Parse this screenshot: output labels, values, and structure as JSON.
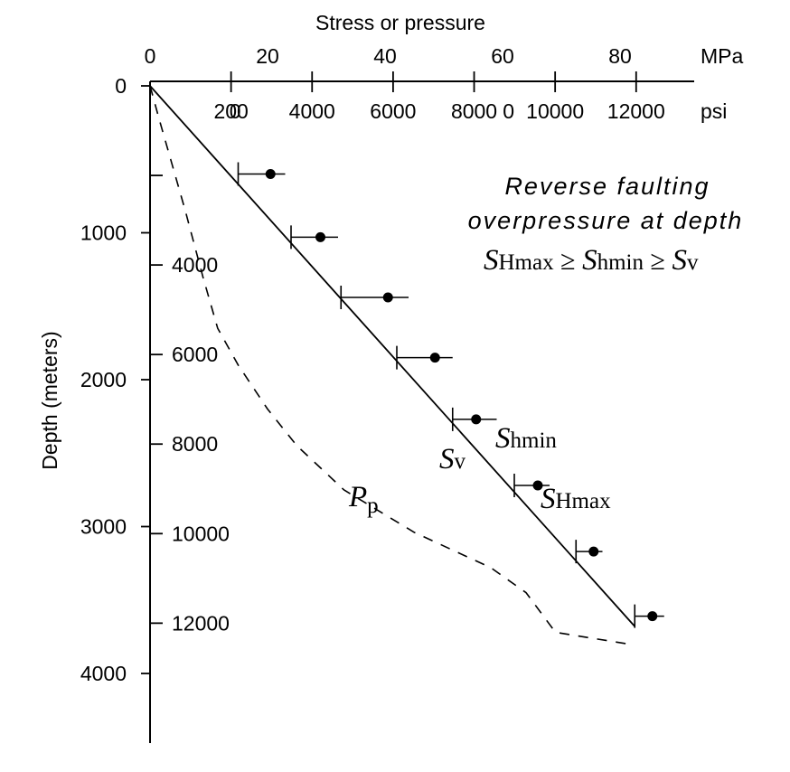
{
  "chart_data": {
    "type": "scatter",
    "title": "Stress or pressure",
    "xlabel": "Stress or pressure",
    "x_unit_top": "MPa",
    "x_unit_bottom": "psi",
    "ylabel": "Depth (meters)",
    "x_mpa_ticks": [
      "0",
      "20",
      "40",
      "60",
      "80"
    ],
    "x_psi_ticks": [
      {
        "label": "200",
        "psi": 2000
      },
      {
        "label": "0",
        "psi": 2100
      },
      {
        "label": "4000",
        "psi": 4000
      },
      {
        "label": "6000",
        "psi": 6000
      },
      {
        "label": "8000",
        "psi": 8000
      },
      {
        "label": "0",
        "psi": 8850
      },
      {
        "label": "10000",
        "psi": 10000
      },
      {
        "label": "12000",
        "psi": 12000
      }
    ],
    "x_psi_tick_marks": [
      2000,
      4000,
      6000,
      8000,
      10000,
      12000
    ],
    "y_m_ticks": [
      "0",
      "1000",
      "2000",
      "3000",
      "4000"
    ],
    "y_ft_ticks": [
      {
        "label": "4000",
        "ft": 4000
      },
      {
        "label": "6000",
        "ft": 6000
      },
      {
        "label": "8000",
        "ft": 8000
      },
      {
        "label": "10000",
        "ft": 10000
      },
      {
        "label": "12000",
        "ft": 12000
      }
    ],
    "y_ft_tick_marks": [
      2000,
      4000,
      6000,
      8000,
      10000,
      12000
    ],
    "xlim_mpa": [
      0,
      92
    ],
    "ylim_m": [
      0,
      4500
    ],
    "series": [
      {
        "name": "Sv",
        "kind": "line",
        "points": [
          [
            0,
            0
          ],
          [
            82.5,
            3680
          ]
        ]
      },
      {
        "name": "Pp",
        "kind": "dashed-line",
        "points": [
          [
            0,
            0
          ],
          [
            1.5,
            220
          ],
          [
            3.5,
            500
          ],
          [
            6,
            850
          ],
          [
            9,
            1300
          ],
          [
            11.5,
            1650
          ],
          [
            15,
            1900
          ],
          [
            20,
            2200
          ],
          [
            25,
            2450
          ],
          [
            29,
            2600
          ],
          [
            33,
            2750
          ],
          [
            45,
            3040
          ],
          [
            58,
            3280
          ],
          [
            64,
            3450
          ],
          [
            69,
            3720
          ],
          [
            81.5,
            3800
          ]
        ]
      },
      {
        "name": "Shmin",
        "kind": "tick",
        "x": [
          15,
          24,
          32.5,
          42,
          51.5,
          62,
          72.5,
          82.5
        ],
        "y": [
          600,
          1030,
          1440,
          1850,
          2270,
          2720,
          3170,
          3610
        ]
      },
      {
        "name": "SHmax",
        "kind": "point",
        "x": [
          20.5,
          29,
          40.5,
          48.5,
          55.5,
          66,
          75.5,
          85.5
        ],
        "y": [
          600,
          1030,
          1440,
          1850,
          2270,
          2720,
          3170,
          3610
        ],
        "bar_from": [
          15,
          24,
          32.5,
          42,
          51.5,
          62,
          72.5,
          82.5
        ],
        "bar_to": [
          23,
          32,
          44,
          51.5,
          59,
          68,
          77,
          87.5
        ]
      }
    ],
    "annotations": {
      "line1": "Reverse faulting",
      "line2": "overpressure at depth",
      "rel_sym": "S",
      "rel_1": "Hmax",
      "rel_op1": " ≥ ",
      "rel_2": "hmin",
      "rel_op2": " ≥ ",
      "rel_3": "v"
    },
    "labels": {
      "sv_sym": "S",
      "sv_sub": "v",
      "shmin_sym": "S",
      "shmin_sub": "hmin",
      "shmax_sym": "S",
      "shmax_sub": "Hmax",
      "pp_sym": "P",
      "pp_sub": "p"
    }
  }
}
